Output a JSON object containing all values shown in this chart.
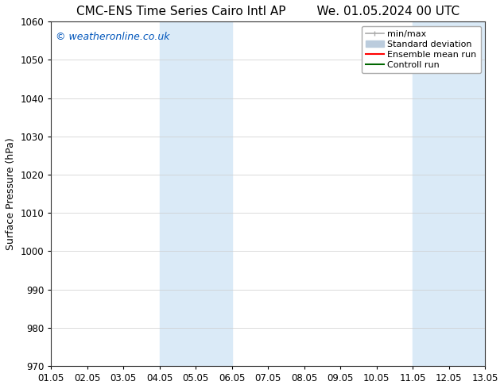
{
  "title": "CMC-ENS Time Series Cairo Intl AP        We. 01.05.2024 00 UTC",
  "ylabel": "Surface Pressure (hPa)",
  "xlim": [
    0,
    12
  ],
  "ylim": [
    970,
    1060
  ],
  "yticks": [
    970,
    980,
    990,
    1000,
    1010,
    1020,
    1030,
    1040,
    1050,
    1060
  ],
  "xtick_positions": [
    0,
    1,
    2,
    3,
    4,
    5,
    6,
    7,
    8,
    9,
    10,
    11,
    12
  ],
  "xtick_labels": [
    "01.05",
    "02.05",
    "03.05",
    "04.05",
    "05.05",
    "06.05",
    "07.05",
    "08.05",
    "09.05",
    "10.05",
    "11.05",
    "12.05",
    "13.05"
  ],
  "shaded_bands": [
    {
      "xstart": 3,
      "xend": 5
    },
    {
      "xstart": 10,
      "xend": 12
    }
  ],
  "shade_color": "#daeaf7",
  "background_color": "#ffffff",
  "watermark": "© weatheronline.co.uk",
  "watermark_color": "#0055bb",
  "legend_items": [
    {
      "label": "min/max",
      "color": "#aaaaaa",
      "lw": 1.2
    },
    {
      "label": "Standard deviation",
      "color": "#bbccdd",
      "lw": 6
    },
    {
      "label": "Ensemble mean run",
      "color": "#ff0000",
      "lw": 1.5
    },
    {
      "label": "Controll run",
      "color": "#006600",
      "lw": 1.5
    }
  ],
  "grid_color": "#cccccc",
  "title_fontsize": 11,
  "tick_fontsize": 8.5,
  "ylabel_fontsize": 9,
  "watermark_fontsize": 9,
  "legend_fontsize": 8
}
